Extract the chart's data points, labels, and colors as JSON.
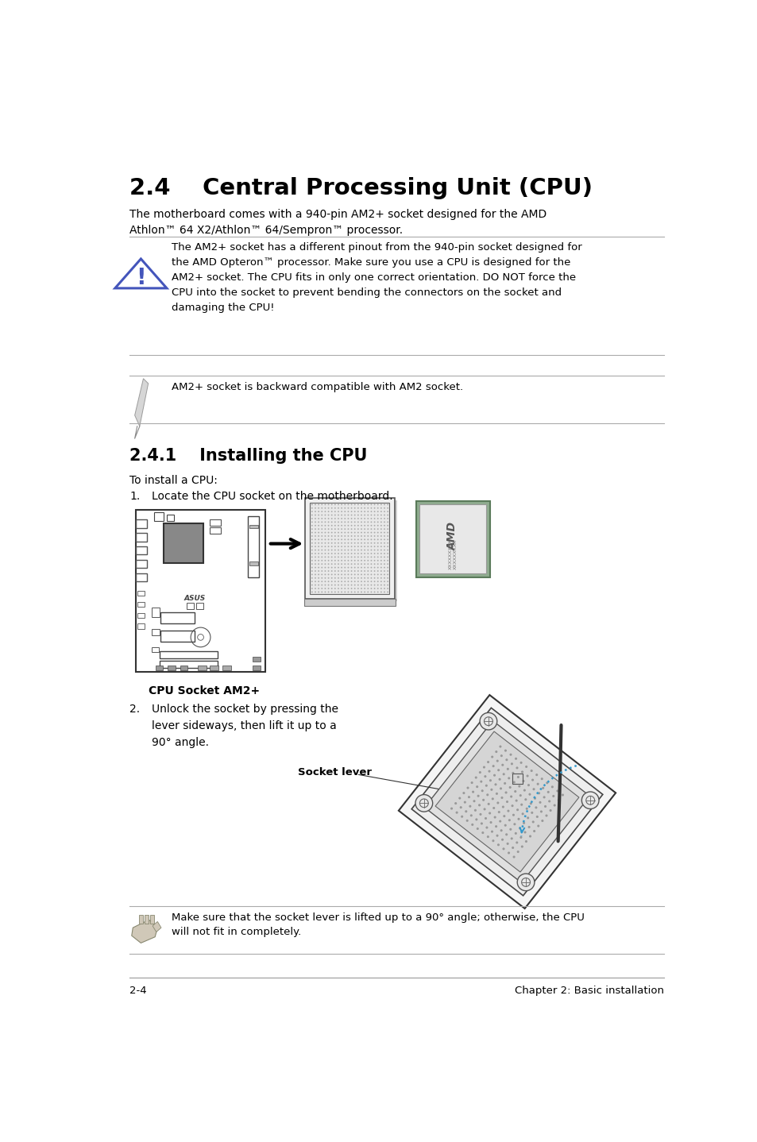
{
  "title": "2.4    Central Processing Unit (CPU)",
  "body_text": "The motherboard comes with a 940-pin AM2+ socket designed for the AMD\nAthlon™ 64 X2/Athlon™ 64/Sempron™ processor.",
  "warning_text": "The AM2+ socket has a different pinout from the 940-pin socket designed for\nthe AMD Opteron™ processor. Make sure you use a CPU is designed for the\nAM2+ socket. The CPU fits in only one correct orientation. DO NOT force the\nCPU into the socket to prevent bending the connectors on the socket and\ndamaging the CPU!",
  "note_text": "AM2+ socket is backward compatible with AM2 socket.",
  "section_title": "2.4.1    Installing the CPU",
  "install_intro": "To install a CPU:",
  "step2_text": "Unlock the socket by pressing the\nlever sideways, then lift it up to a\n90° angle.",
  "socket_lever_label": "Socket lever",
  "note2_text": "Make sure that the socket lever is lifted up to a 90° angle; otherwise, the CPU\nwill not fit in completely.",
  "cpu_socket_label": "CPU Socket AM2+",
  "footer_left": "2-4",
  "footer_right": "Chapter 2: Basic installation",
  "bg_color": "#ffffff",
  "text_color": "#000000",
  "line_color": "#aaaaaa"
}
